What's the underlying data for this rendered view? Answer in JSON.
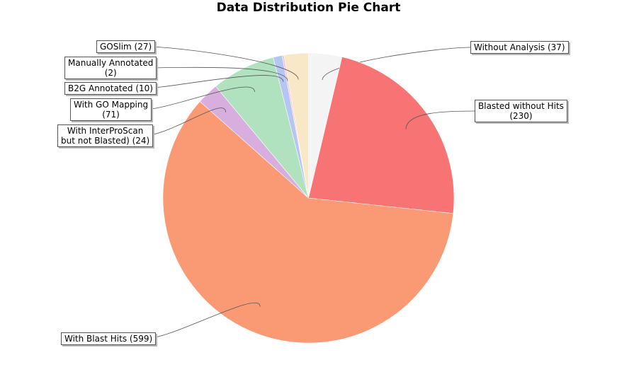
{
  "chart_data": {
    "type": "pie",
    "title": "Data Distribution Pie Chart",
    "legend": "none",
    "slices": [
      {
        "label": "Without Analysis (37)",
        "lines": [
          "Without Analysis (37)"
        ],
        "value": 37,
        "color": "#f4f4f4"
      },
      {
        "label": "Blasted without Hits (230)",
        "lines": [
          "Blasted without Hits",
          "(230)"
        ],
        "value": 230,
        "color": "#f87474"
      },
      {
        "label": "With Blast Hits (599)",
        "lines": [
          "With Blast Hits (599)"
        ],
        "value": 599,
        "color": "#fa9a74"
      },
      {
        "label": "With InterProScan but not Blasted) (24)",
        "lines": [
          "With InterProScan",
          "but not Blasted) (24)"
        ],
        "value": 24,
        "color": "#d8aede"
      },
      {
        "label": "With GO Mapping (71)",
        "lines": [
          "With GO Mapping",
          "(71)"
        ],
        "value": 71,
        "color": "#b0e2c0"
      },
      {
        "label": "B2G Annotated (10)",
        "lines": [
          "B2G Annotated (10)"
        ],
        "value": 10,
        "color": "#b6c6f2"
      },
      {
        "label": "Manually Annotated (2)",
        "lines": [
          "Manually Annotated",
          "(2)"
        ],
        "value": 2,
        "color": "#f6c4d6"
      },
      {
        "label": "GOSlim (27)",
        "lines": [
          "GOSlim (27)"
        ],
        "value": 27,
        "color": "#f8e8c8"
      }
    ]
  }
}
